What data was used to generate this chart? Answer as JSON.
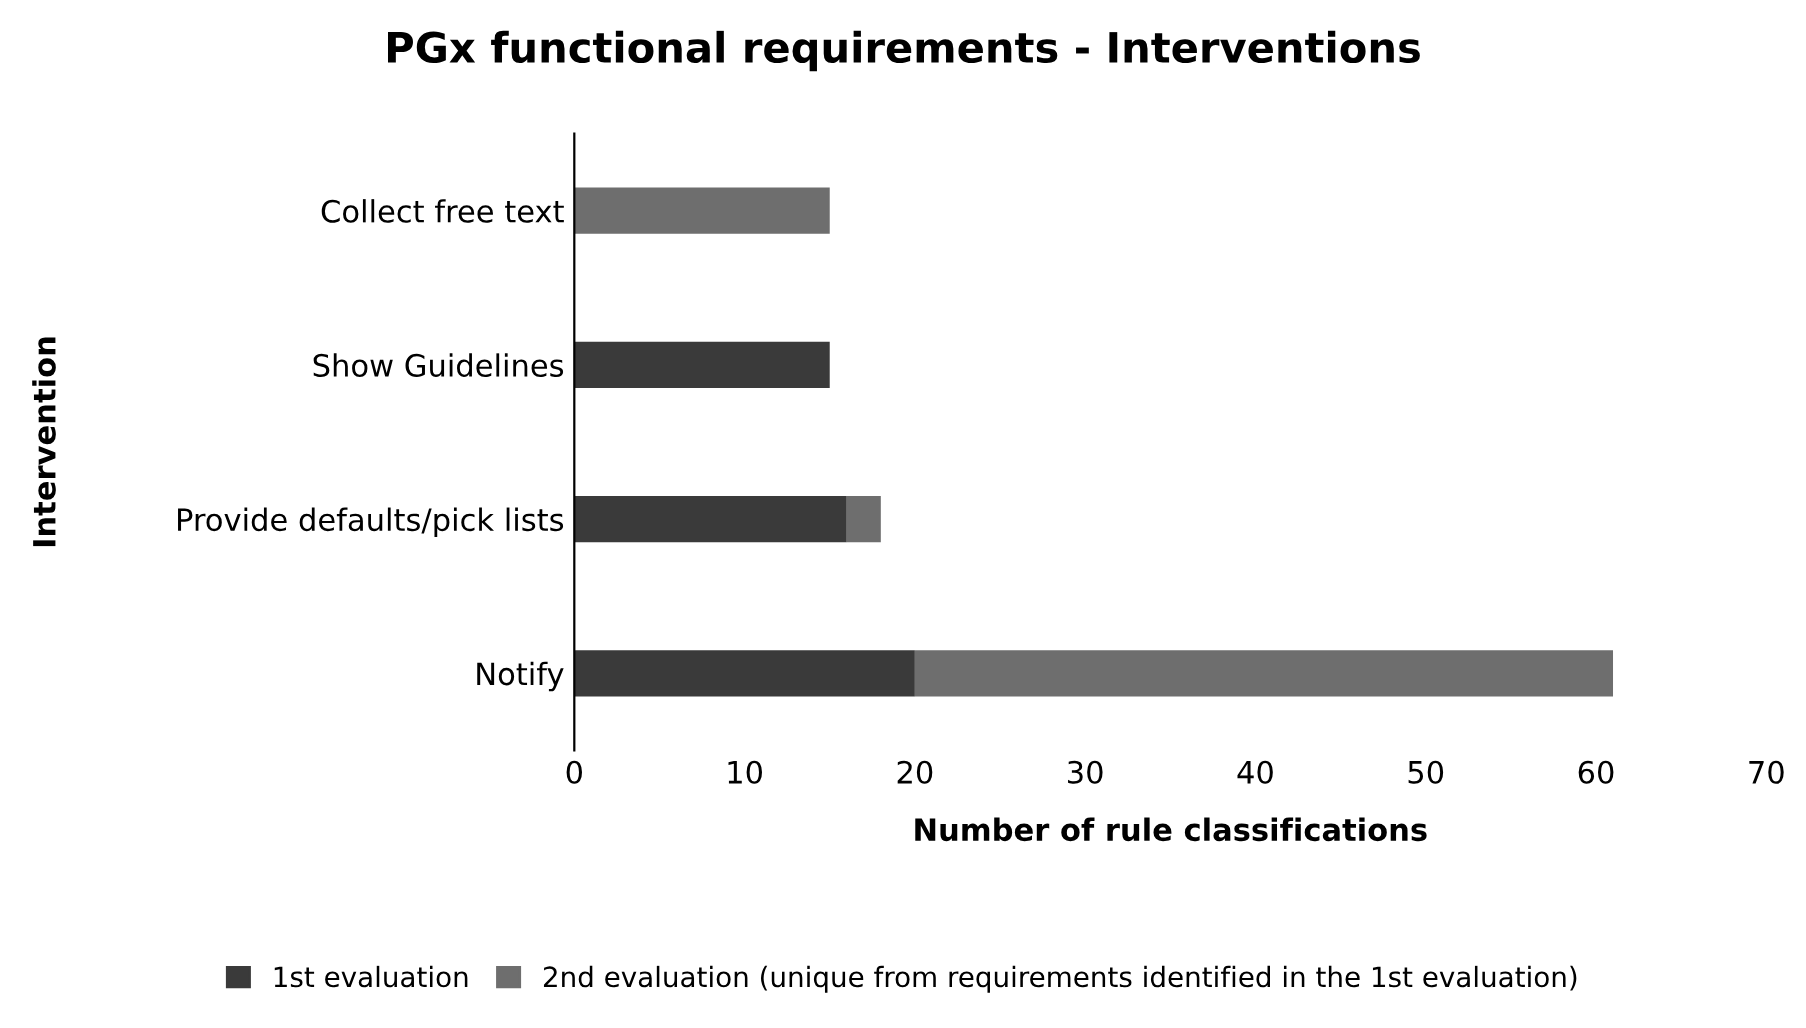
{
  "chart_data": {
    "type": "bar",
    "orientation": "horizontal",
    "stacked": true,
    "title": "PGx functional requirements - Interventions",
    "xlabel": "Number of rule classifications",
    "ylabel": "Intervention",
    "categories": [
      "Collect free text",
      "Show Guidelines",
      "Provide defaults/pick lists",
      "Notify"
    ],
    "series": [
      {
        "name": "1st evaluation",
        "color": "#3a3a3a",
        "values": [
          0,
          15,
          16,
          20
        ]
      },
      {
        "name": "2nd evaluation (unique from requirements identified in the 1st evaluation)",
        "color": "#6e6e6e",
        "values": [
          15,
          0,
          2,
          41
        ]
      }
    ],
    "xlim": [
      0,
      70
    ],
    "xticks": [
      0,
      10,
      20,
      30,
      40,
      50,
      60,
      70
    ],
    "grid": false,
    "legend": "bottom"
  }
}
